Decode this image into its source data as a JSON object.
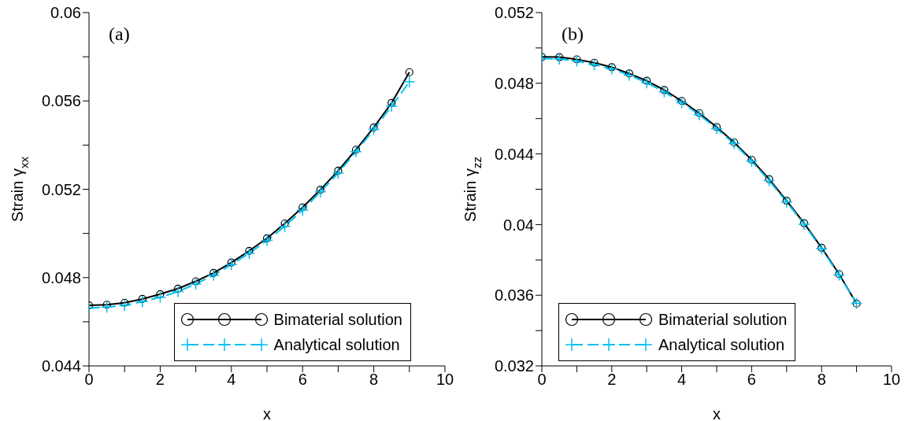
{
  "chart_data": [
    {
      "type": "line",
      "annotations": [
        "(a)"
      ],
      "xlabel": "x",
      "ylabel": "Strain γ$_{xx}$",
      "x": [
        0,
        0.5,
        1,
        1.5,
        2,
        2.5,
        3,
        3.5,
        4,
        4.5,
        5,
        5.5,
        6,
        6.5,
        7,
        7.5,
        8,
        8.5,
        9
      ],
      "series": [
        {
          "name": "Bimaterial solution",
          "color": "#000000",
          "marker": "circle",
          "line_style": "solid",
          "values": [
            0.04674,
            0.04677,
            0.04686,
            0.04703,
            0.04725,
            0.0475,
            0.04783,
            0.04821,
            0.04868,
            0.04921,
            0.04978,
            0.05045,
            0.05118,
            0.05198,
            0.05284,
            0.05379,
            0.0548,
            0.05591,
            0.0573
          ]
        },
        {
          "name": "Analytical solution",
          "color": "#00c0f0",
          "marker": "cross",
          "line_style": "dashed",
          "values": [
            0.04662,
            0.04666,
            0.04674,
            0.04691,
            0.04711,
            0.04737,
            0.04771,
            0.04811,
            0.04859,
            0.0491,
            0.04968,
            0.05032,
            0.05106,
            0.05188,
            0.05273,
            0.0537,
            0.05471,
            0.05576,
            0.05686
          ]
        }
      ],
      "xlim": [
        0,
        10
      ],
      "xticks": [
        0,
        {
          "value": 1,
          "label": null
        },
        2,
        {
          "value": 3,
          "label": null
        },
        4,
        {
          "value": 5,
          "label": null
        },
        6,
        {
          "value": 7,
          "label": null
        },
        8,
        {
          "value": 9,
          "label": null
        },
        10
      ],
      "ylim": [
        0.044,
        0.06
      ],
      "yticks": [
        {
          "value": 0.044,
          "label": "0.044"
        },
        {
          "value": 0.046,
          "label": null
        },
        {
          "value": 0.048,
          "label": "0.048"
        },
        {
          "value": 0.05,
          "label": null
        },
        {
          "value": 0.052,
          "label": "0.052"
        },
        {
          "value": 0.054,
          "label": null
        },
        {
          "value": 0.056,
          "label": "0.056"
        },
        {
          "value": 0.058,
          "label": null
        },
        {
          "value": 0.06,
          "label": "0.06"
        }
      ],
      "grid": false,
      "legend": "bottom right"
    },
    {
      "type": "line",
      "annotations": [
        "(b)"
      ],
      "xlabel": "x",
      "ylabel": "Strain γ$_{zz}$",
      "x": [
        0,
        0.5,
        1,
        1.5,
        2,
        2.5,
        3,
        3.5,
        4,
        4.5,
        5,
        5.5,
        6,
        6.5,
        7,
        7.5,
        8,
        8.5,
        9
      ],
      "series": [
        {
          "name": "Bimaterial solution",
          "color": "#000000",
          "marker": "circle",
          "line_style": "solid",
          "values": [
            0.04949,
            0.04948,
            0.04935,
            0.04916,
            0.04891,
            0.04855,
            0.04814,
            0.04762,
            0.047,
            0.04631,
            0.04552,
            0.04465,
            0.04367,
            0.04257,
            0.04135,
            0.04008,
            0.03869,
            0.0372,
            0.03553
          ]
        },
        {
          "name": "Analytical solution",
          "color": "#00c0f0",
          "marker": "cross",
          "line_style": "dashed",
          "values": [
            0.0494,
            0.04937,
            0.04926,
            0.04905,
            0.04881,
            0.04846,
            0.04803,
            0.04751,
            0.0469,
            0.04622,
            0.04543,
            0.04458,
            0.04359,
            0.04249,
            0.04128,
            0.04002,
            0.03863,
            0.03714,
            0.03554
          ]
        }
      ],
      "xlim": [
        0,
        10
      ],
      "xticks": [
        0,
        {
          "value": 1,
          "label": null
        },
        2,
        {
          "value": 3,
          "label": null
        },
        4,
        {
          "value": 5,
          "label": null
        },
        6,
        {
          "value": 7,
          "label": null
        },
        8,
        {
          "value": 9,
          "label": null
        },
        10
      ],
      "ylim": [
        0.032,
        0.052
      ],
      "yticks": [
        {
          "value": 0.032,
          "label": "0.032"
        },
        {
          "value": 0.034,
          "label": null
        },
        {
          "value": 0.036,
          "label": "0.036"
        },
        {
          "value": 0.038,
          "label": null
        },
        {
          "value": 0.04,
          "label": "0.04"
        },
        {
          "value": 0.042,
          "label": null
        },
        {
          "value": 0.044,
          "label": "0.044"
        },
        {
          "value": 0.046,
          "label": null
        },
        {
          "value": 0.048,
          "label": "0.048"
        },
        {
          "value": 0.05,
          "label": null
        },
        {
          "value": 0.052,
          "label": "0.052"
        }
      ],
      "grid": false,
      "legend": "bottom left"
    }
  ]
}
